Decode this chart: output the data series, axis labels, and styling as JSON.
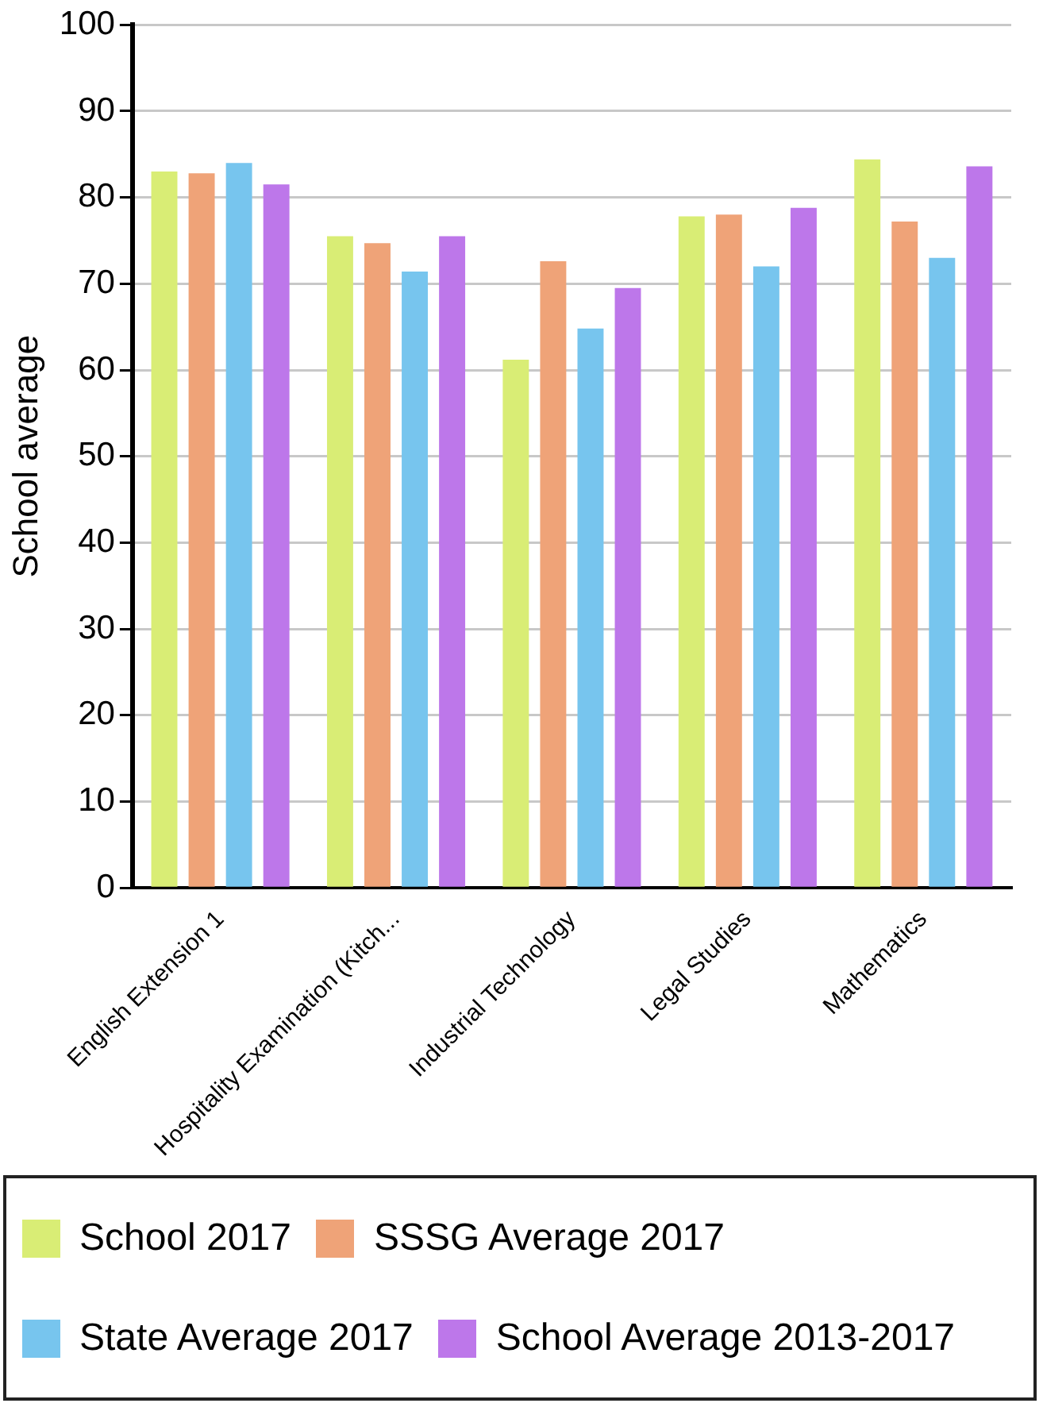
{
  "chart_data": {
    "type": "bar",
    "ylabel": "School average",
    "categories": [
      "English Extension 1",
      "Hospitality Examination (Kitch...",
      "Industrial Technology",
      "Legal Studies",
      "Mathematics"
    ],
    "series": [
      {
        "name": "School 2017",
        "color": "#d9ed75",
        "values": [
          83.0,
          75.5,
          61.2,
          77.8,
          84.4
        ]
      },
      {
        "name": "SSSG Average 2017",
        "color": "#efa378",
        "values": [
          82.8,
          74.7,
          72.6,
          78.0,
          77.2
        ]
      },
      {
        "name": "State Average 2017",
        "color": "#77c5ee",
        "values": [
          84.0,
          71.4,
          64.8,
          72.0,
          73.0
        ]
      },
      {
        "name": "School Average 2013-2017",
        "color": "#bd77ea",
        "values": [
          81.5,
          75.5,
          69.5,
          78.8,
          83.6
        ]
      }
    ],
    "ylim": [
      0,
      100
    ],
    "yticks": [
      0,
      10,
      20,
      30,
      40,
      50,
      60,
      70,
      80,
      90,
      100
    ],
    "grid": "y",
    "legend": "bottom"
  }
}
